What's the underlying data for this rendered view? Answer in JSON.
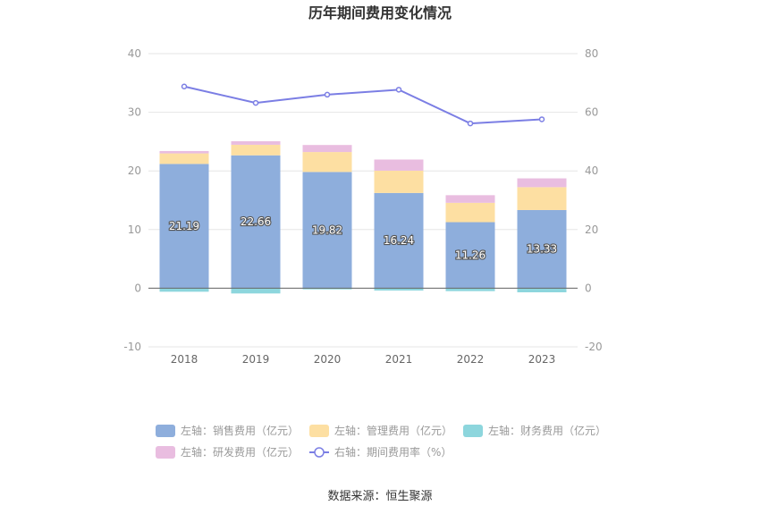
{
  "chart_data": {
    "type": "bar",
    "title": "历年期间费用变化情况",
    "categories": [
      "2018",
      "2019",
      "2020",
      "2021",
      "2022",
      "2023"
    ],
    "y_left": {
      "ylim": [
        -10,
        40
      ],
      "ticks": [
        -10,
        0,
        10,
        20,
        30,
        40
      ]
    },
    "y_right": {
      "ylim": [
        -20,
        80
      ],
      "ticks": [
        -20,
        0,
        20,
        40,
        60,
        80
      ]
    },
    "series": [
      {
        "name": "左轴：销售费用（亿元）",
        "axis": "left",
        "kind": "bar",
        "color": "#8eaedc",
        "values": [
          21.19,
          22.66,
          19.82,
          16.24,
          11.26,
          13.33
        ],
        "show_labels": true
      },
      {
        "name": "左轴：管理费用（亿元）",
        "axis": "left",
        "kind": "bar",
        "color": "#fddfa2",
        "values": [
          1.8,
          1.8,
          3.4,
          3.8,
          3.3,
          3.9
        ]
      },
      {
        "name": "左轴：财务费用（亿元）",
        "axis": "left",
        "kind": "bar",
        "color": "#8dd6dd",
        "values": [
          -0.6,
          -0.9,
          -0.2,
          -0.4,
          -0.5,
          -0.7
        ]
      },
      {
        "name": "左轴：研发费用（亿元）",
        "axis": "left",
        "kind": "bar",
        "color": "#e9bde0",
        "values": [
          0.4,
          0.6,
          1.2,
          1.9,
          1.3,
          1.5
        ]
      },
      {
        "name": "右轴：期间费用率（%）",
        "axis": "right",
        "kind": "line",
        "color": "#7b7ee4",
        "values": [
          68.8,
          63.2,
          66.0,
          67.7,
          56.2,
          57.6
        ]
      }
    ],
    "legend_position": "bottom",
    "grid": true
  },
  "source": "数据来源：恒生聚源"
}
